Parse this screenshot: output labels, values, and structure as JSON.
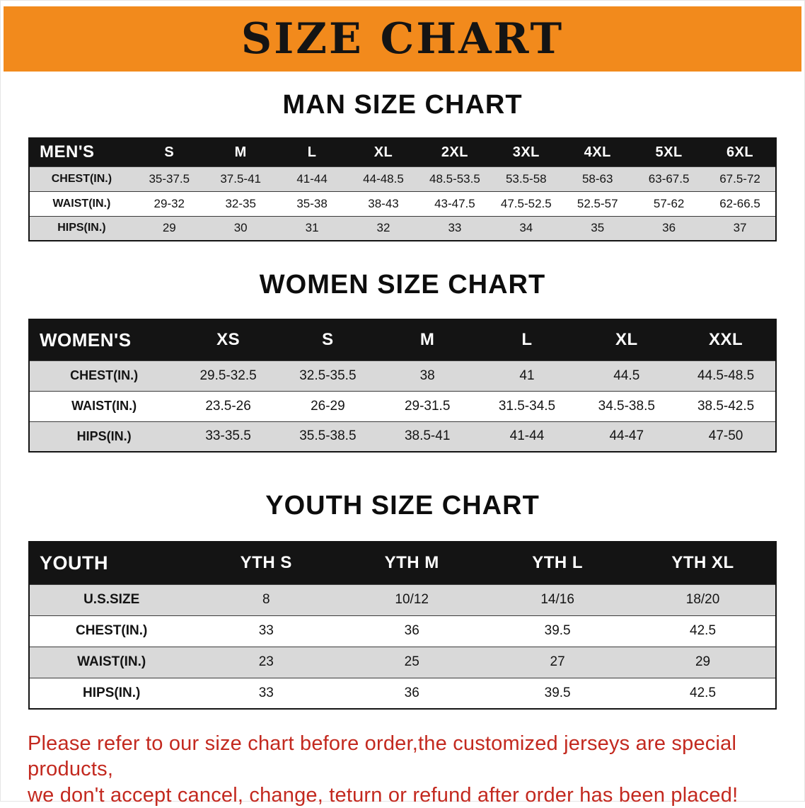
{
  "banner": {
    "title": "SIZE CHART",
    "background": "#F28A1C",
    "text_color": "#141414"
  },
  "sections": {
    "men": {
      "title": "MAN SIZE CHART",
      "table": {
        "header": [
          "MEN'S",
          "S",
          "M",
          "L",
          "XL",
          "2XL",
          "3XL",
          "4XL",
          "5XL",
          "6XL"
        ],
        "rows": [
          [
            "CHEST(IN.)",
            "35-37.5",
            "37.5-41",
            "41-44",
            "44-48.5",
            "48.5-53.5",
            "53.5-58",
            "58-63",
            "63-67.5",
            "67.5-72"
          ],
          [
            "WAIST(IN.)",
            "29-32",
            "32-35",
            "35-38",
            "38-43",
            "43-47.5",
            "47.5-52.5",
            "52.5-57",
            "57-62",
            "62-66.5"
          ],
          [
            "HIPS(IN.)",
            "29",
            "30",
            "31",
            "32",
            "33",
            "34",
            "35",
            "36",
            "37"
          ]
        ]
      }
    },
    "women": {
      "title": "WOMEN SIZE CHART",
      "table": {
        "header": [
          "WOMEN'S",
          "XS",
          "S",
          "M",
          "L",
          "XL",
          "XXL"
        ],
        "rows": [
          [
            "CHEST(IN.)",
            "29.5-32.5",
            "32.5-35.5",
            "38",
            "41",
            "44.5",
            "44.5-48.5"
          ],
          [
            "WAIST(IN.)",
            "23.5-26",
            "26-29",
            "29-31.5",
            "31.5-34.5",
            "34.5-38.5",
            "38.5-42.5"
          ],
          [
            "HIPS(IN.)",
            "33-35.5",
            "35.5-38.5",
            "38.5-41",
            "41-44",
            "44-47",
            "47-50"
          ]
        ]
      }
    },
    "youth": {
      "title": "YOUTH SIZE CHART",
      "table": {
        "header": [
          "YOUTH",
          "YTH S",
          "YTH M",
          "YTH L",
          "YTH XL"
        ],
        "rows": [
          [
            "U.S.SIZE",
            "8",
            "10/12",
            "14/16",
            "18/20"
          ],
          [
            "CHEST(IN.)",
            "33",
            "36",
            "39.5",
            "42.5"
          ],
          [
            "WAIST(IN.)",
            "23",
            "25",
            "27",
            "29"
          ],
          [
            "HIPS(IN.)",
            "33",
            "36",
            "39.5",
            "42.5"
          ]
        ]
      }
    }
  },
  "disclaimer": {
    "line1": "Please refer to our size chart before order,the customized jerseys are special products,",
    "line2": "we don't accept cancel, change, teturn or refund after order has been placed!",
    "color": "#C3291F"
  }
}
